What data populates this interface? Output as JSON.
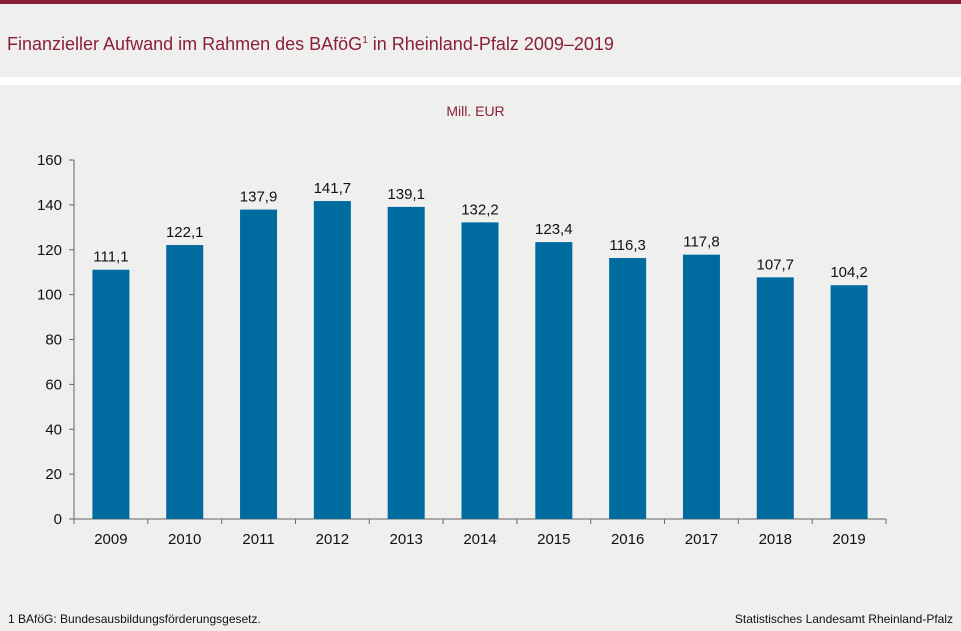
{
  "header": {
    "title_main": "Finanzieller Aufwand im Rahmen des BAföG",
    "title_sup": "1",
    "title_rest": " in Rheinland-Pfalz 2009–2019"
  },
  "footer": {
    "footnote": "1 BAföG: Bundesausbildungsförderungsgesetz.",
    "source": "Statistisches Landesamt Rheinland-Pfalz"
  },
  "colors": {
    "bar": "#006b9e",
    "accent": "#8a1f3c",
    "axis": "#666666"
  },
  "chart_data": {
    "type": "bar",
    "title": "Finanzieller Aufwand im Rahmen des BAföG1 in Rheinland-Pfalz 2009–2019",
    "unit": "Mill. EUR",
    "categories": [
      "2009",
      "2010",
      "2011",
      "2012",
      "2013",
      "2014",
      "2015",
      "2016",
      "2017",
      "2018",
      "2019"
    ],
    "values": [
      111.1,
      122.1,
      137.9,
      141.7,
      139.1,
      132.2,
      123.4,
      116.3,
      117.8,
      107.7,
      104.2
    ],
    "value_labels": [
      "111,1",
      "122,1",
      "137,9",
      "141,7",
      "139,1",
      "132,2",
      "123,4",
      "116,3",
      "117,8",
      "107,7",
      "104,2"
    ],
    "ylim": [
      0,
      160
    ],
    "yticks": [
      0,
      20,
      40,
      60,
      80,
      100,
      120,
      140,
      160
    ],
    "grid": false,
    "legend": "none"
  }
}
